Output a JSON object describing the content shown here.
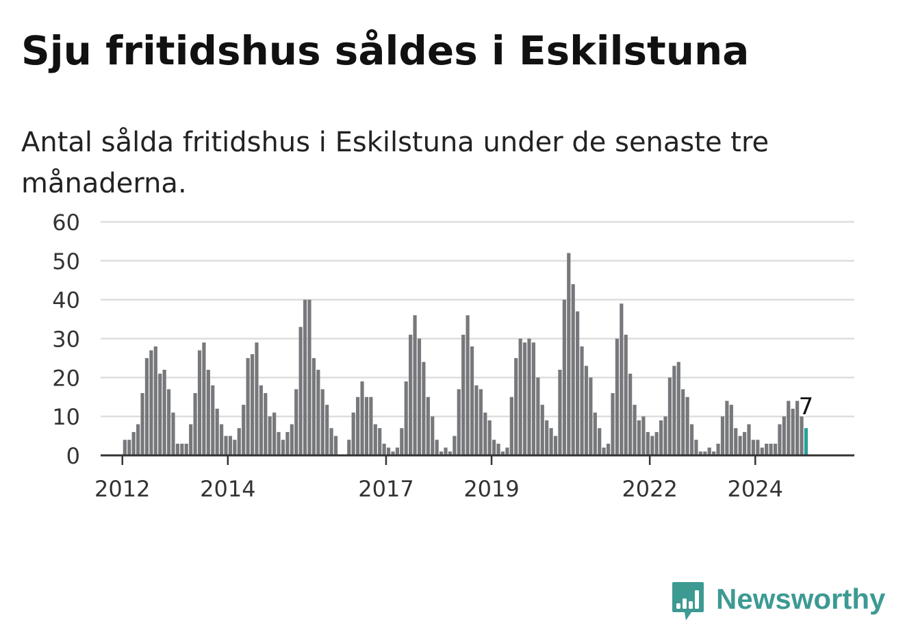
{
  "header": {
    "title": "Sju fritidshus såldes i Eskilstuna",
    "subtitle": "Antal sålda fritidshus i Eskilstuna under de senaste tre månaderna."
  },
  "brand": {
    "name": "Newsworthy",
    "color": "#3d9a93"
  },
  "chart_data": {
    "type": "bar",
    "title": "Sju fritidshus såldes i Eskilstuna",
    "subtitle": "Antal sålda fritidshus i Eskilstuna under de senaste tre månaderna.",
    "xlabel": "",
    "ylabel": "",
    "ylim": [
      0,
      60
    ],
    "yticks": [
      "0",
      "10",
      "20",
      "30",
      "40",
      "50",
      "60"
    ],
    "xticks": [
      {
        "label": "2012",
        "start_month": "2012-01"
      },
      {
        "label": "2014",
        "start_month": "2014-01"
      },
      {
        "label": "2017",
        "start_month": "2017-01"
      },
      {
        "label": "2019",
        "start_month": "2019-01"
      },
      {
        "label": "2022",
        "start_month": "2022-01"
      },
      {
        "label": "2024",
        "start_month": "2024-01"
      }
    ],
    "grid": true,
    "legend": "none",
    "first_month": "2011-10",
    "last_month": "2024-12",
    "highlight": {
      "month": "2024-12",
      "value": 7,
      "label": "7"
    },
    "bar_color": "#77787b",
    "highlight_color": "#2aa198",
    "values": [
      0,
      0,
      0,
      4,
      4,
      6,
      8,
      16,
      25,
      27,
      28,
      21,
      22,
      17,
      11,
      3,
      3,
      3,
      8,
      16,
      27,
      29,
      22,
      18,
      12,
      8,
      5,
      5,
      4,
      7,
      13,
      25,
      26,
      29,
      18,
      16,
      10,
      11,
      6,
      4,
      6,
      8,
      17,
      33,
      40,
      40,
      25,
      22,
      17,
      13,
      7,
      5,
      0,
      0,
      4,
      11,
      15,
      19,
      15,
      15,
      8,
      7,
      3,
      2,
      1,
      2,
      7,
      19,
      31,
      36,
      30,
      24,
      15,
      10,
      4,
      1,
      2,
      1,
      5,
      17,
      31,
      36,
      28,
      18,
      17,
      11,
      9,
      4,
      3,
      1,
      2,
      15,
      25,
      30,
      29,
      30,
      29,
      20,
      13,
      9,
      7,
      5,
      22,
      40,
      52,
      44,
      37,
      28,
      23,
      20,
      11,
      7,
      2,
      3,
      16,
      30,
      39,
      31,
      21,
      13,
      9,
      10,
      6,
      5,
      6,
      9,
      10,
      20,
      23,
      24,
      17,
      15,
      8,
      4,
      1,
      1,
      2,
      1,
      3,
      10,
      14,
      13,
      7,
      5,
      6,
      8,
      4,
      4,
      2,
      3,
      3,
      3,
      8,
      10,
      14,
      12,
      14,
      10,
      7
    ]
  }
}
